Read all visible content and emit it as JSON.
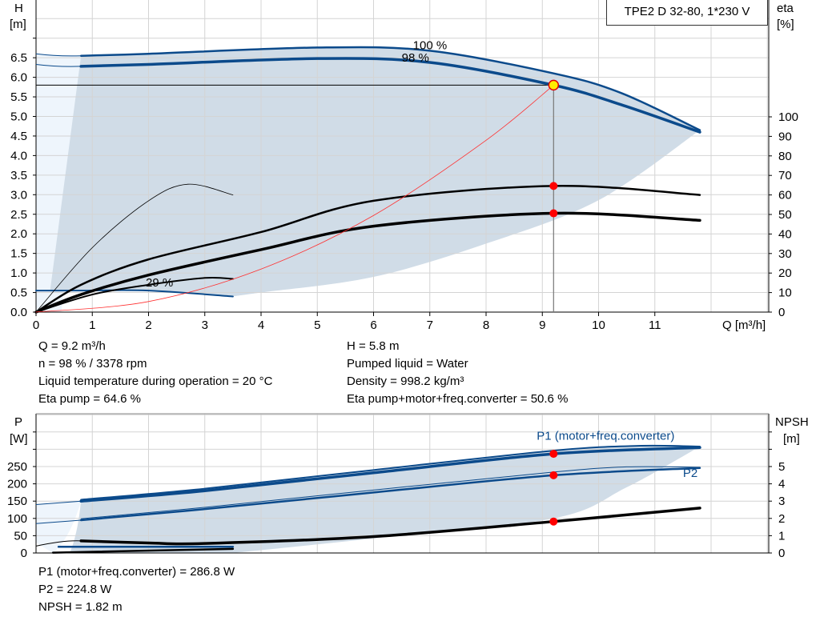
{
  "title": "TPE2 D 32-80, 1*230 V",
  "colors": {
    "curve_blue": "#0b4a8b",
    "region": "#d0dce7",
    "pale": "#eef5fc",
    "operating_point": "#ff0000",
    "system_curve": "#ff3030"
  },
  "chart_data": [
    {
      "type": "line",
      "xlabel": "Q [m³/h]",
      "ylabel_left": [
        "H",
        "[m]"
      ],
      "ylabel_right": [
        "eta",
        "[%]"
      ],
      "xlim": [
        0,
        13
      ],
      "ylim_left": [
        0,
        8
      ],
      "ylim_right": [
        0,
        164
      ],
      "x_ticks": [
        "0",
        "1",
        "2",
        "3",
        "4",
        "5",
        "6",
        "7",
        "8",
        "9",
        "10",
        "11"
      ],
      "y_ticks_left": [
        "0.0",
        "0.5",
        "1.0",
        "1.5",
        "2.0",
        "2.5",
        "3.0",
        "3.5",
        "4.0",
        "4.5",
        "5.0",
        "5.5",
        "6.0",
        "6.5"
      ],
      "y_ticks_right": [
        "0",
        "10",
        "20",
        "30",
        "40",
        "50",
        "60",
        "70",
        "80",
        "90",
        "100"
      ],
      "grid": true,
      "series": [
        {
          "name": "100 %",
          "axis": "H",
          "points": [
            [
              0.8,
              6.55
            ],
            [
              2,
              6.6
            ],
            [
              5,
              6.76
            ],
            [
              7,
              6.68
            ],
            [
              9.2,
              6.1
            ],
            [
              10.4,
              5.6
            ],
            [
              11.8,
              4.65
            ]
          ]
        },
        {
          "name": "98 %",
          "axis": "H",
          "points": [
            [
              0.8,
              6.28
            ],
            [
              2,
              6.33
            ],
            [
              5,
              6.48
            ],
            [
              7,
              6.38
            ],
            [
              9.2,
              5.8
            ],
            [
              10.4,
              5.3
            ],
            [
              11.8,
              4.6
            ]
          ]
        },
        {
          "name": "29 %",
          "axis": "H",
          "points": [
            [
              0,
              0.55
            ],
            [
              0.8,
              0.55
            ],
            [
              2,
              0.55
            ],
            [
              3.5,
              0.4
            ]
          ]
        },
        {
          "axis": "eta",
          "note_label": "",
          "points": [
            [
              0,
              0
            ],
            [
              0.8,
              14
            ],
            [
              2,
              27
            ],
            [
              4,
              41
            ],
            [
              6,
              57
            ],
            [
              9.2,
              64.6
            ],
            [
              11.8,
              60
            ]
          ]
        },
        {
          "axis": "eta",
          "points": [
            [
              0,
              0
            ],
            [
              0.8,
              9
            ],
            [
              2,
              19
            ],
            [
              4,
              32
            ],
            [
              6,
              44
            ],
            [
              9.2,
              50.6
            ],
            [
              11.8,
              47
            ]
          ]
        },
        {
          "axis": "eta",
          "points": [
            [
              0,
              0
            ],
            [
              1,
              33
            ],
            [
              2,
              57
            ],
            [
              2.7,
              65.5
            ],
            [
              3.5,
              60
            ]
          ]
        },
        {
          "axis": "eta",
          "points": [
            [
              0,
              0
            ],
            [
              1,
              9
            ],
            [
              2,
              14
            ],
            [
              3,
              17.5
            ],
            [
              3.5,
              17
            ]
          ]
        },
        {
          "axis": "H",
          "system_curve": true,
          "points": [
            [
              0,
              0
            ],
            [
              2,
              0.27
            ],
            [
              4,
              1.1
            ],
            [
              6,
              2.47
            ],
            [
              8,
              4.39
            ],
            [
              9.2,
              5.8
            ]
          ]
        }
      ],
      "operating_point": {
        "Q": 9.2,
        "H": 5.8,
        "eta_pump": 64.6,
        "eta_total": 50.6
      }
    },
    {
      "type": "line",
      "ylabel_left": [
        "P",
        "[W]"
      ],
      "ylabel_right": [
        "NPSH",
        "[m]"
      ],
      "xlim": [
        0,
        13
      ],
      "ylim_left": [
        0,
        400
      ],
      "ylim_right": [
        0,
        8
      ],
      "y_ticks_left": [
        "0",
        "50",
        "100",
        "150",
        "200",
        "250"
      ],
      "y_ticks_right": [
        "0",
        "1",
        "2",
        "3",
        "4",
        "5"
      ],
      "grid": true,
      "series": [
        {
          "name": "P1 (motor+freq.converter)",
          "axis": "P",
          "points": [
            [
              0.8,
              150
            ],
            [
              3,
              180
            ],
            [
              6,
              232
            ],
            [
              9.2,
              286.8
            ],
            [
              11.8,
              305
            ]
          ]
        },
        {
          "axis": "P",
          "points": [
            [
              0.8,
              154
            ],
            [
              3,
              186
            ],
            [
              6,
              240
            ],
            [
              9.2,
              296
            ],
            [
              10.7,
              310
            ],
            [
              11.8,
              308
            ]
          ]
        },
        {
          "name": "P2",
          "axis": "P",
          "points": [
            [
              0.8,
              95
            ],
            [
              3,
              127
            ],
            [
              6,
              175
            ],
            [
              9.2,
              224.8
            ],
            [
              11.8,
              246
            ]
          ]
        },
        {
          "axis": "P",
          "points": [
            [
              0.8,
              99
            ],
            [
              3,
              132
            ],
            [
              6,
              182
            ],
            [
              9.2,
              234
            ],
            [
              10.5,
              249
            ],
            [
              11.8,
              248
            ]
          ]
        },
        {
          "axis": "NPSH",
          "points": [
            [
              0.8,
              0.7
            ],
            [
              2,
              0.58
            ],
            [
              3,
              0.55
            ],
            [
              6,
              0.95
            ],
            [
              9.2,
              1.82
            ],
            [
              11.8,
              2.6
            ]
          ]
        },
        {
          "axis": "P",
          "points": [
            [
              0.4,
              18
            ],
            [
              3.5,
              18
            ]
          ]
        },
        {
          "axis": "P",
          "points": [
            [
              0.3,
              1
            ],
            [
              3.5,
              12
            ]
          ]
        }
      ],
      "operating_point": {
        "Q": 9.2,
        "P1": 286.8,
        "P2": 224.8,
        "NPSH": 1.82
      }
    }
  ],
  "info_top_left": [
    "Q = 9.2 m³/h",
    "n = 98 % / 3378 rpm",
    "Liquid temperature during operation = 20 °C",
    "Eta pump = 64.6 %"
  ],
  "info_top_right": [
    "H = 5.8 m",
    "Pumped liquid = Water",
    "Density = 998.2 kg/m³",
    "Eta pump+motor+freq.converter = 50.6 %"
  ],
  "info_bottom": [
    "P1 (motor+freq.converter) = 286.8 W",
    "P2 = 224.8 W",
    "NPSH = 1.82 m"
  ]
}
